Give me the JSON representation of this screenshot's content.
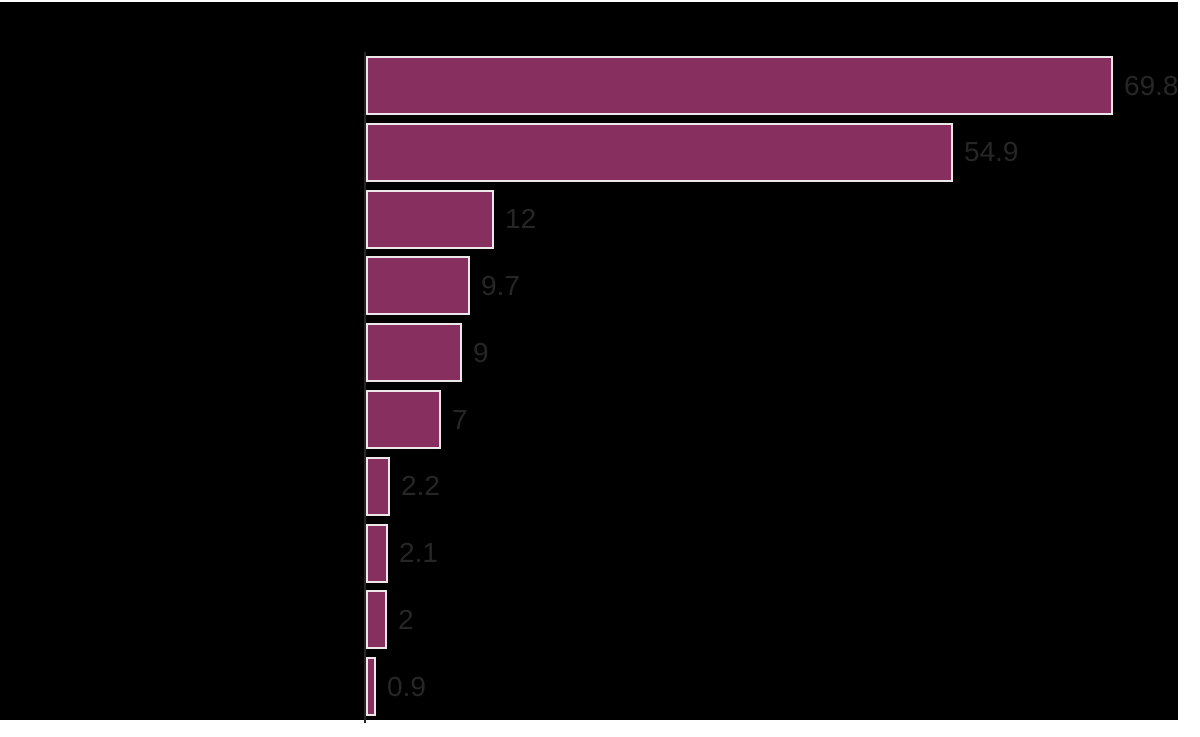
{
  "chart_data": {
    "type": "bar",
    "orientation": "horizontal",
    "title": "",
    "xlabel": "",
    "ylabel": "",
    "categories": [
      "",
      "",
      "",
      "",
      "",
      "",
      "",
      "",
      "",
      ""
    ],
    "values": [
      69.8,
      54.9,
      12,
      9.7,
      9,
      7,
      2.2,
      2.1,
      2,
      0.9
    ],
    "value_labels": [
      "69.8",
      "54.9",
      "12",
      "9.7",
      "9",
      "7",
      "2.2",
      "2.1",
      "2",
      "0.9"
    ],
    "xlim": [
      0,
      70
    ],
    "grid": false,
    "legend": false,
    "bar_color": "#872F5E",
    "bar_border_color": "#EDE7EA",
    "value_label_color": "#262626",
    "axis_color": "#262626",
    "plot_background_color": "#000000",
    "page_background_color": "#FFFFFF"
  }
}
